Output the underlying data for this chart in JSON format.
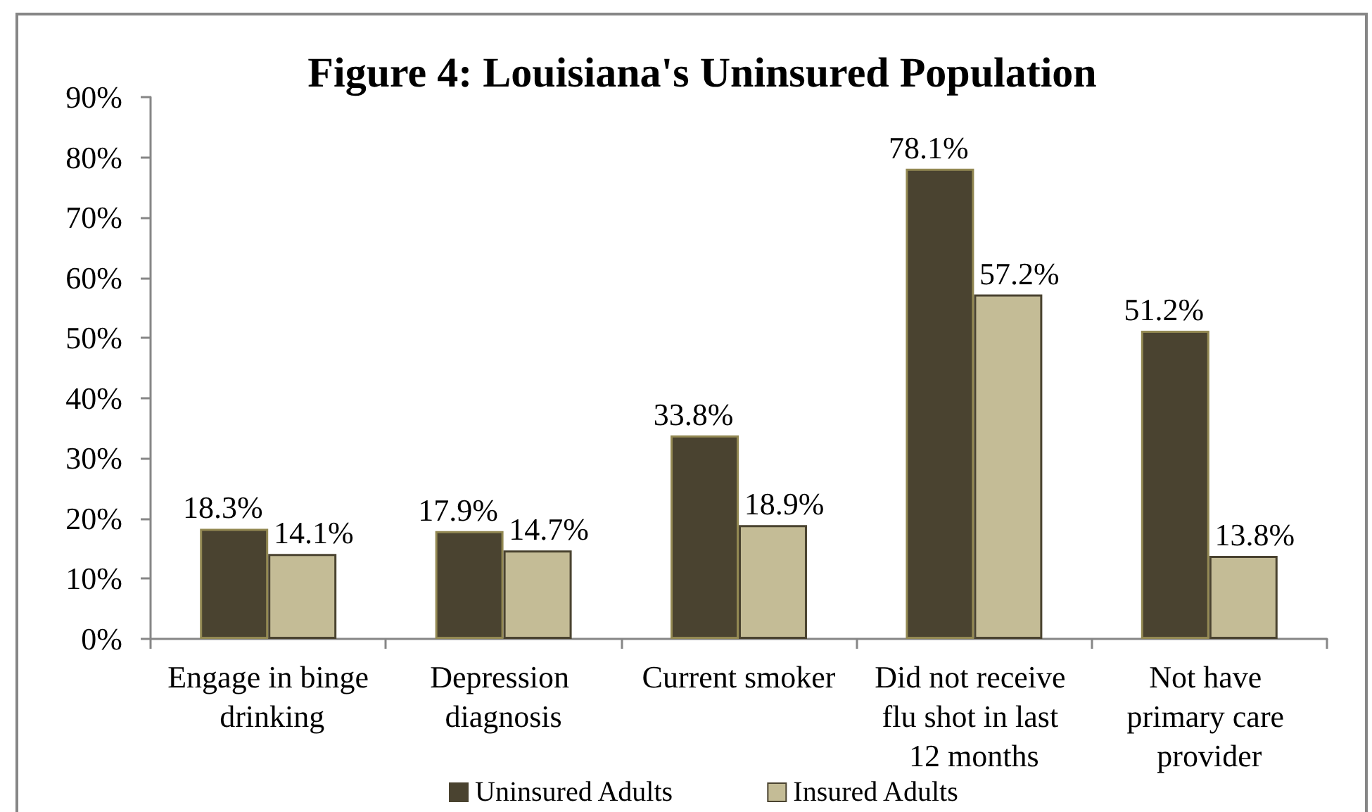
{
  "chart_data": {
    "type": "bar",
    "title": "Figure 4: Louisiana's Uninsured Population",
    "categories": [
      "Engage in binge drinking",
      "Depression diagnosis",
      "Current smoker",
      "Did not receive flu shot in last 12 months",
      "Not have primary care provider"
    ],
    "series": [
      {
        "name": "Uninsured Adults",
        "color": "#4a4330",
        "values": [
          18.3,
          17.9,
          33.8,
          78.1,
          51.2
        ],
        "value_labels": [
          "18.3%",
          "17.9%",
          "33.8%",
          "78.1%",
          "51.2%"
        ]
      },
      {
        "name": "Insured Adults",
        "color": "#c4bc96",
        "values": [
          14.1,
          14.7,
          18.9,
          57.2,
          13.8
        ],
        "value_labels": [
          "14.1%",
          "14.7%",
          "18.9%",
          "57.2%",
          "13.8%"
        ]
      }
    ],
    "ylim": [
      0,
      90
    ],
    "yticks": [
      {
        "value": 0,
        "label": "0%"
      },
      {
        "value": 10,
        "label": "10%"
      },
      {
        "value": 20,
        "label": "20%"
      },
      {
        "value": 30,
        "label": "30%"
      },
      {
        "value": 40,
        "label": "40%"
      },
      {
        "value": 50,
        "label": "50%"
      },
      {
        "value": 60,
        "label": "60%"
      },
      {
        "value": 70,
        "label": "70%"
      },
      {
        "value": 80,
        "label": "80%"
      },
      {
        "value": 90,
        "label": "90%"
      }
    ],
    "legend": "bottom"
  }
}
